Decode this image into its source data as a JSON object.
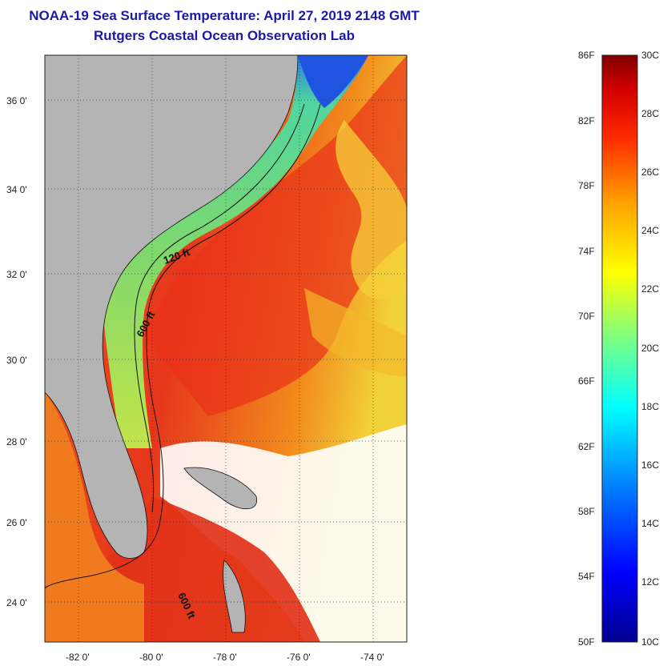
{
  "header": {
    "title": "NOAA-19 Sea Surface Temperature:  April 27, 2019 2148 GMT",
    "subtitle": "Rutgers Coastal Ocean Observation Lab"
  },
  "map": {
    "lat_labels": [
      "36 0'",
      "34 0'",
      "32 0'",
      "30 0'",
      "28 0'",
      "26 0'",
      "24 0'"
    ],
    "lon_labels": [
      "-82 0'",
      "-80 0'",
      "-78 0'",
      "-76 0'",
      "-74 0'"
    ],
    "contours": {
      "shelf_120": "120 ft",
      "slope_600": "600 ft",
      "south_600": "600 ft"
    }
  },
  "colorbar": {
    "fahrenheit_labels": [
      "86F",
      "82F",
      "78F",
      "74F",
      "70F",
      "66F",
      "62F",
      "58F",
      "54F",
      "50F"
    ],
    "celsius_labels": [
      "30C",
      "28C",
      "26C",
      "24C",
      "22C",
      "20C",
      "18C",
      "16C",
      "14C",
      "12C",
      "10C"
    ]
  },
  "colors": {
    "title": "#1a1aa6",
    "land": "#b4b4b4",
    "warm": "#e8321c",
    "cool": "#6fd27a"
  }
}
